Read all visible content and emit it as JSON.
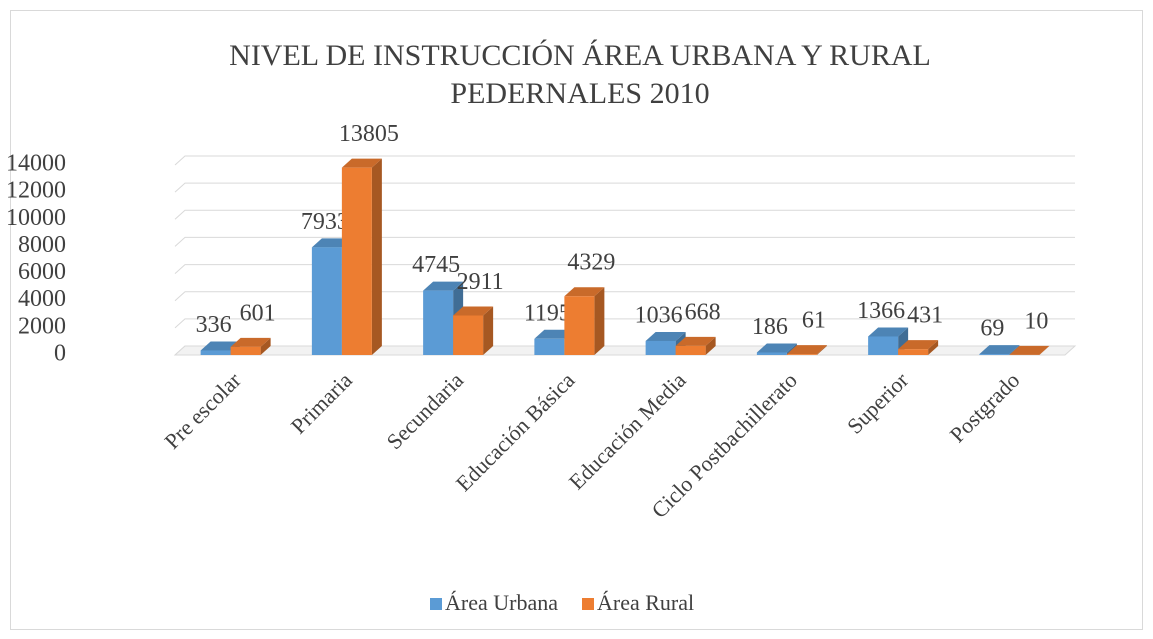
{
  "chart_data": {
    "type": "bar3d",
    "title": [
      "NIVEL DE INSTRUCCIÓN ÁREA URBANA Y RURAL",
      "PEDERNALES 2010"
    ],
    "categories": [
      "Pre escolar",
      "Primaria",
      "Secundaria",
      "Educación Básica",
      "Educación Media",
      "Ciclo Postbachillerato",
      "Superior",
      "Postgrado"
    ],
    "series": [
      {
        "name": "Área Urbana",
        "color": "#5b9bd5",
        "values": [
          336,
          7933,
          4745,
          1195,
          1036,
          186,
          1366,
          69
        ]
      },
      {
        "name": "Área Rural",
        "color": "#ed7d31",
        "values": [
          601,
          13805,
          2911,
          4329,
          668,
          61,
          431,
          10
        ]
      }
    ],
    "ylim": [
      0,
      14000
    ],
    "yticks": [
      0,
      2000,
      4000,
      6000,
      8000,
      10000,
      12000,
      14000
    ],
    "grid": true,
    "legend": "bottom"
  }
}
